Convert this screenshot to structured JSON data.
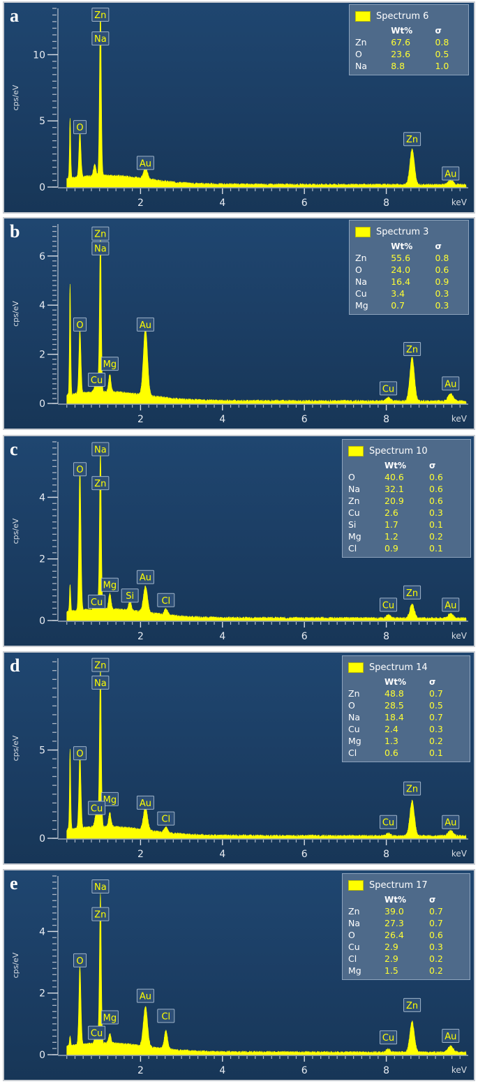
{
  "colors": {
    "spectrum": "#ffff00",
    "background": "#1d4268",
    "label_fill": "#2e4f76",
    "axis": "#d8dde4"
  },
  "xaxis": {
    "unit": "keV",
    "ticks": [
      2,
      4,
      6,
      8
    ]
  },
  "yaxis_label": "cps/eV",
  "chart_data": [
    {
      "type": "line",
      "panel": "a",
      "legend": {
        "title": "Spectrum 6",
        "header": [
          "Wt%",
          "σ"
        ],
        "rows": [
          [
            "Zn",
            "67.6",
            "0.8"
          ],
          [
            "O",
            "23.6",
            "0.5"
          ],
          [
            "Na",
            "8.8",
            "1.0"
          ]
        ]
      },
      "xlabel": "keV",
      "ylabel": "cps/eV",
      "xlim": [
        0,
        10
      ],
      "ylim": [
        0,
        13.5
      ],
      "yticks": [
        0,
        5,
        10
      ],
      "peaks": [
        {
          "x": 0.28,
          "y": 4.5,
          "w": 0.015
        },
        {
          "x": 0.52,
          "y": 3.4,
          "w": 0.025
        },
        {
          "x": 1.02,
          "y": 12.5,
          "w": 0.022
        },
        {
          "x": 0.88,
          "y": 0.9,
          "w": 0.03
        },
        {
          "x": 2.12,
          "y": 0.85,
          "w": 0.05
        },
        {
          "x": 8.63,
          "y": 2.7,
          "w": 0.055
        },
        {
          "x": 9.57,
          "y": 0.35,
          "w": 0.06
        }
      ],
      "labels": [
        {
          "text": "Zn",
          "x": 1.02,
          "y": 13.0
        },
        {
          "text": "Na",
          "x": 1.02,
          "y": 11.2
        },
        {
          "text": "O",
          "x": 0.52,
          "y": 4.5
        },
        {
          "text": "Au",
          "x": 2.12,
          "y": 1.8
        },
        {
          "text": "Zn",
          "x": 8.63,
          "y": 3.6
        },
        {
          "text": "Au",
          "x": 9.57,
          "y": 1.0
        }
      ]
    },
    {
      "type": "line",
      "panel": "b",
      "legend": {
        "title": "Spectrum 3",
        "header": [
          "Wt%",
          "σ"
        ],
        "rows": [
          [
            "Zn",
            "55.6",
            "0.8"
          ],
          [
            "O",
            "24.0",
            "0.6"
          ],
          [
            "Na",
            "16.4",
            "0.9"
          ],
          [
            "Cu",
            "3.4",
            "0.3"
          ],
          [
            "Mg",
            "0.7",
            "0.3"
          ]
        ]
      },
      "xlabel": "keV",
      "ylabel": "cps/eV",
      "xlim": [
        0,
        10
      ],
      "ylim": [
        0,
        7.3
      ],
      "yticks": [
        0,
        2,
        4,
        6
      ],
      "peaks": [
        {
          "x": 0.28,
          "y": 4.5,
          "w": 0.015
        },
        {
          "x": 0.52,
          "y": 2.6,
          "w": 0.025
        },
        {
          "x": 1.02,
          "y": 6.3,
          "w": 0.022
        },
        {
          "x": 0.93,
          "y": 0.6,
          "w": 0.04
        },
        {
          "x": 1.25,
          "y": 0.7,
          "w": 0.03
        },
        {
          "x": 2.12,
          "y": 2.75,
          "w": 0.05
        },
        {
          "x": 8.05,
          "y": 0.15,
          "w": 0.05
        },
        {
          "x": 8.63,
          "y": 1.8,
          "w": 0.055
        },
        {
          "x": 9.57,
          "y": 0.3,
          "w": 0.06
        }
      ],
      "labels": [
        {
          "text": "Zn",
          "x": 1.02,
          "y": 6.9
        },
        {
          "text": "Na",
          "x": 1.02,
          "y": 6.3
        },
        {
          "text": "O",
          "x": 0.52,
          "y": 3.2
        },
        {
          "text": "Au",
          "x": 2.12,
          "y": 3.2
        },
        {
          "text": "Mg",
          "x": 1.25,
          "y": 1.6
        },
        {
          "text": "Cu",
          "x": 0.93,
          "y": 0.95
        },
        {
          "text": "Zn",
          "x": 8.63,
          "y": 2.2
        },
        {
          "text": "Cu",
          "x": 8.05,
          "y": 0.6
        },
        {
          "text": "Au",
          "x": 9.57,
          "y": 0.8
        }
      ]
    },
    {
      "type": "line",
      "panel": "c",
      "legend": {
        "title": "Spectrum 10",
        "header": [
          "Wt%",
          "σ"
        ],
        "rows": [
          [
            "O",
            "40.6",
            "0.6"
          ],
          [
            "Na",
            "32.1",
            "0.6"
          ],
          [
            "Zn",
            "20.9",
            "0.6"
          ],
          [
            "Cu",
            "2.6",
            "0.3"
          ],
          [
            "Si",
            "1.7",
            "0.1"
          ],
          [
            "Mg",
            "1.2",
            "0.2"
          ],
          [
            "Cl",
            "0.9",
            "0.1"
          ]
        ]
      },
      "xlabel": "keV",
      "ylabel": "cps/eV",
      "xlim": [
        0,
        10
      ],
      "ylim": [
        0,
        5.8
      ],
      "yticks": [
        0,
        2,
        4
      ],
      "peaks": [
        {
          "x": 0.28,
          "y": 0.9,
          "w": 0.015
        },
        {
          "x": 0.52,
          "y": 4.6,
          "w": 0.025
        },
        {
          "x": 1.02,
          "y": 5.1,
          "w": 0.022
        },
        {
          "x": 0.93,
          "y": 0.3,
          "w": 0.04
        },
        {
          "x": 1.25,
          "y": 0.5,
          "w": 0.03
        },
        {
          "x": 1.74,
          "y": 0.35,
          "w": 0.03
        },
        {
          "x": 2.12,
          "y": 0.85,
          "w": 0.05
        },
        {
          "x": 2.62,
          "y": 0.2,
          "w": 0.04
        },
        {
          "x": 8.05,
          "y": 0.1,
          "w": 0.05
        },
        {
          "x": 8.63,
          "y": 0.45,
          "w": 0.055
        },
        {
          "x": 9.57,
          "y": 0.15,
          "w": 0.06
        }
      ],
      "labels": [
        {
          "text": "Na",
          "x": 1.02,
          "y": 5.55
        },
        {
          "text": "O",
          "x": 0.52,
          "y": 4.9
        },
        {
          "text": "Zn",
          "x": 1.02,
          "y": 4.45
        },
        {
          "text": "Au",
          "x": 2.12,
          "y": 1.4
        },
        {
          "text": "Mg",
          "x": 1.25,
          "y": 1.15
        },
        {
          "text": "Si",
          "x": 1.74,
          "y": 0.8
        },
        {
          "text": "Cl",
          "x": 2.62,
          "y": 0.65
        },
        {
          "text": "Cu",
          "x": 0.93,
          "y": 0.6
        },
        {
          "text": "Zn",
          "x": 8.63,
          "y": 0.9
        },
        {
          "text": "Cu",
          "x": 8.05,
          "y": 0.5
        },
        {
          "text": "Au",
          "x": 9.57,
          "y": 0.5
        }
      ]
    },
    {
      "type": "line",
      "panel": "d",
      "legend": {
        "title": "Spectrum 14",
        "header": [
          "Wt%",
          "σ"
        ],
        "rows": [
          [
            "Zn",
            "48.8",
            "0.7"
          ],
          [
            "O",
            "28.5",
            "0.5"
          ],
          [
            "Na",
            "18.4",
            "0.7"
          ],
          [
            "Cu",
            "2.4",
            "0.3"
          ],
          [
            "Mg",
            "1.3",
            "0.2"
          ],
          [
            "Cl",
            "0.6",
            "0.1"
          ]
        ]
      },
      "xlabel": "keV",
      "ylabel": "cps/eV",
      "xlim": [
        0,
        10
      ],
      "ylim": [
        0,
        10.2
      ],
      "yticks": [
        0,
        5
      ],
      "peaks": [
        {
          "x": 0.28,
          "y": 4.5,
          "w": 0.015
        },
        {
          "x": 0.52,
          "y": 4.2,
          "w": 0.025
        },
        {
          "x": 1.02,
          "y": 9.0,
          "w": 0.022
        },
        {
          "x": 0.93,
          "y": 0.9,
          "w": 0.04
        },
        {
          "x": 1.25,
          "y": 0.8,
          "w": 0.03
        },
        {
          "x": 2.12,
          "y": 1.3,
          "w": 0.05
        },
        {
          "x": 2.62,
          "y": 0.3,
          "w": 0.04
        },
        {
          "x": 8.05,
          "y": 0.15,
          "w": 0.05
        },
        {
          "x": 8.63,
          "y": 2.0,
          "w": 0.055
        },
        {
          "x": 9.57,
          "y": 0.3,
          "w": 0.06
        }
      ],
      "labels": [
        {
          "text": "Zn",
          "x": 1.02,
          "y": 9.8
        },
        {
          "text": "Na",
          "x": 1.02,
          "y": 8.8
        },
        {
          "text": "O",
          "x": 0.52,
          "y": 4.8
        },
        {
          "text": "Mg",
          "x": 1.25,
          "y": 2.2
        },
        {
          "text": "Au",
          "x": 2.12,
          "y": 2.0
        },
        {
          "text": "Cu",
          "x": 0.93,
          "y": 1.7
        },
        {
          "text": "Cl",
          "x": 2.62,
          "y": 1.1
        },
        {
          "text": "Zn",
          "x": 8.63,
          "y": 2.8
        },
        {
          "text": "Cu",
          "x": 8.05,
          "y": 0.9
        },
        {
          "text": "Au",
          "x": 9.57,
          "y": 0.9
        }
      ]
    },
    {
      "type": "line",
      "panel": "e",
      "legend": {
        "title": "Spectrum 17",
        "header": [
          "Wt%",
          "σ"
        ],
        "rows": [
          [
            "Zn",
            "39.0",
            "0.7"
          ],
          [
            "Na",
            "27.3",
            "0.7"
          ],
          [
            "O",
            "26.4",
            "0.6"
          ],
          [
            "Cu",
            "2.9",
            "0.3"
          ],
          [
            "Cl",
            "2.9",
            "0.2"
          ],
          [
            "Mg",
            "1.5",
            "0.2"
          ]
        ]
      },
      "xlabel": "keV",
      "ylabel": "cps/eV",
      "xlim": [
        0,
        10
      ],
      "ylim": [
        0,
        5.8
      ],
      "yticks": [
        0,
        2,
        4
      ],
      "peaks": [
        {
          "x": 0.28,
          "y": 0.3,
          "w": 0.015
        },
        {
          "x": 0.52,
          "y": 2.55,
          "w": 0.025
        },
        {
          "x": 1.02,
          "y": 4.8,
          "w": 0.022
        },
        {
          "x": 0.93,
          "y": 0.35,
          "w": 0.04
        },
        {
          "x": 1.25,
          "y": 0.3,
          "w": 0.03
        },
        {
          "x": 2.12,
          "y": 1.3,
          "w": 0.05
        },
        {
          "x": 2.62,
          "y": 0.6,
          "w": 0.04
        },
        {
          "x": 8.05,
          "y": 0.1,
          "w": 0.05
        },
        {
          "x": 8.63,
          "y": 1.0,
          "w": 0.055
        },
        {
          "x": 9.57,
          "y": 0.2,
          "w": 0.06
        }
      ],
      "labels": [
        {
          "text": "Na",
          "x": 1.02,
          "y": 5.45
        },
        {
          "text": "Zn",
          "x": 1.02,
          "y": 4.55
        },
        {
          "text": "O",
          "x": 0.52,
          "y": 3.05
        },
        {
          "text": "Au",
          "x": 2.12,
          "y": 1.9
        },
        {
          "text": "Cl",
          "x": 2.62,
          "y": 1.25
        },
        {
          "text": "Mg",
          "x": 1.25,
          "y": 1.2
        },
        {
          "text": "Cu",
          "x": 0.93,
          "y": 0.7
        },
        {
          "text": "Zn",
          "x": 8.63,
          "y": 1.6
        },
        {
          "text": "Cu",
          "x": 8.05,
          "y": 0.55
        },
        {
          "text": "Au",
          "x": 9.57,
          "y": 0.6
        }
      ]
    }
  ]
}
